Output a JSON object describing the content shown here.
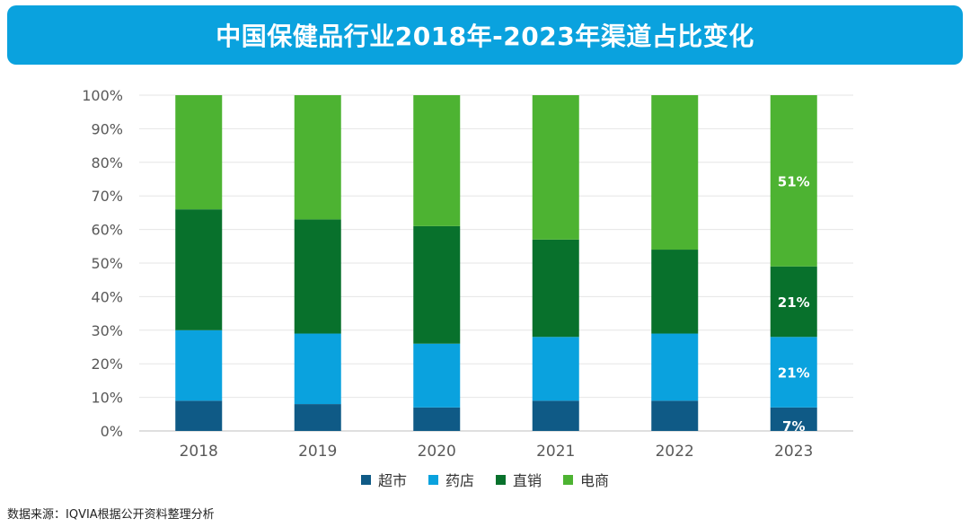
{
  "header": {
    "title": "中国保健品行业2018年-2023年渠道占比变化"
  },
  "footer": {
    "source": "数据来源：IQVIA根据公开资料整理分析"
  },
  "chart_data": {
    "type": "bar",
    "stacked": true,
    "categories": [
      "2018",
      "2019",
      "2020",
      "2021",
      "2022",
      "2023"
    ],
    "ylim": [
      0,
      100
    ],
    "yticks": [
      "0%",
      "10%",
      "20%",
      "30%",
      "40%",
      "50%",
      "60%",
      "70%",
      "80%",
      "90%",
      "100%"
    ],
    "grid": true,
    "legend_position": "bottom",
    "series": [
      {
        "name": "超市",
        "color": "#0f5a86",
        "values": [
          9,
          8,
          7,
          9,
          9,
          7
        ]
      },
      {
        "name": "药店",
        "color": "#0aa2de",
        "values": [
          21,
          21,
          19,
          19,
          20,
          21
        ]
      },
      {
        "name": "直销",
        "color": "#08712c",
        "values": [
          36,
          34,
          35,
          29,
          25,
          21
        ]
      },
      {
        "name": "电商",
        "color": "#4db332",
        "values": [
          34,
          37,
          39,
          43,
          46,
          51
        ]
      }
    ],
    "data_labels": [
      {
        "category": "2023",
        "series": "超市",
        "text": "7%"
      },
      {
        "category": "2023",
        "series": "药店",
        "text": "21%"
      },
      {
        "category": "2023",
        "series": "直销",
        "text": "21%"
      },
      {
        "category": "2023",
        "series": "电商",
        "text": "51%"
      }
    ]
  }
}
